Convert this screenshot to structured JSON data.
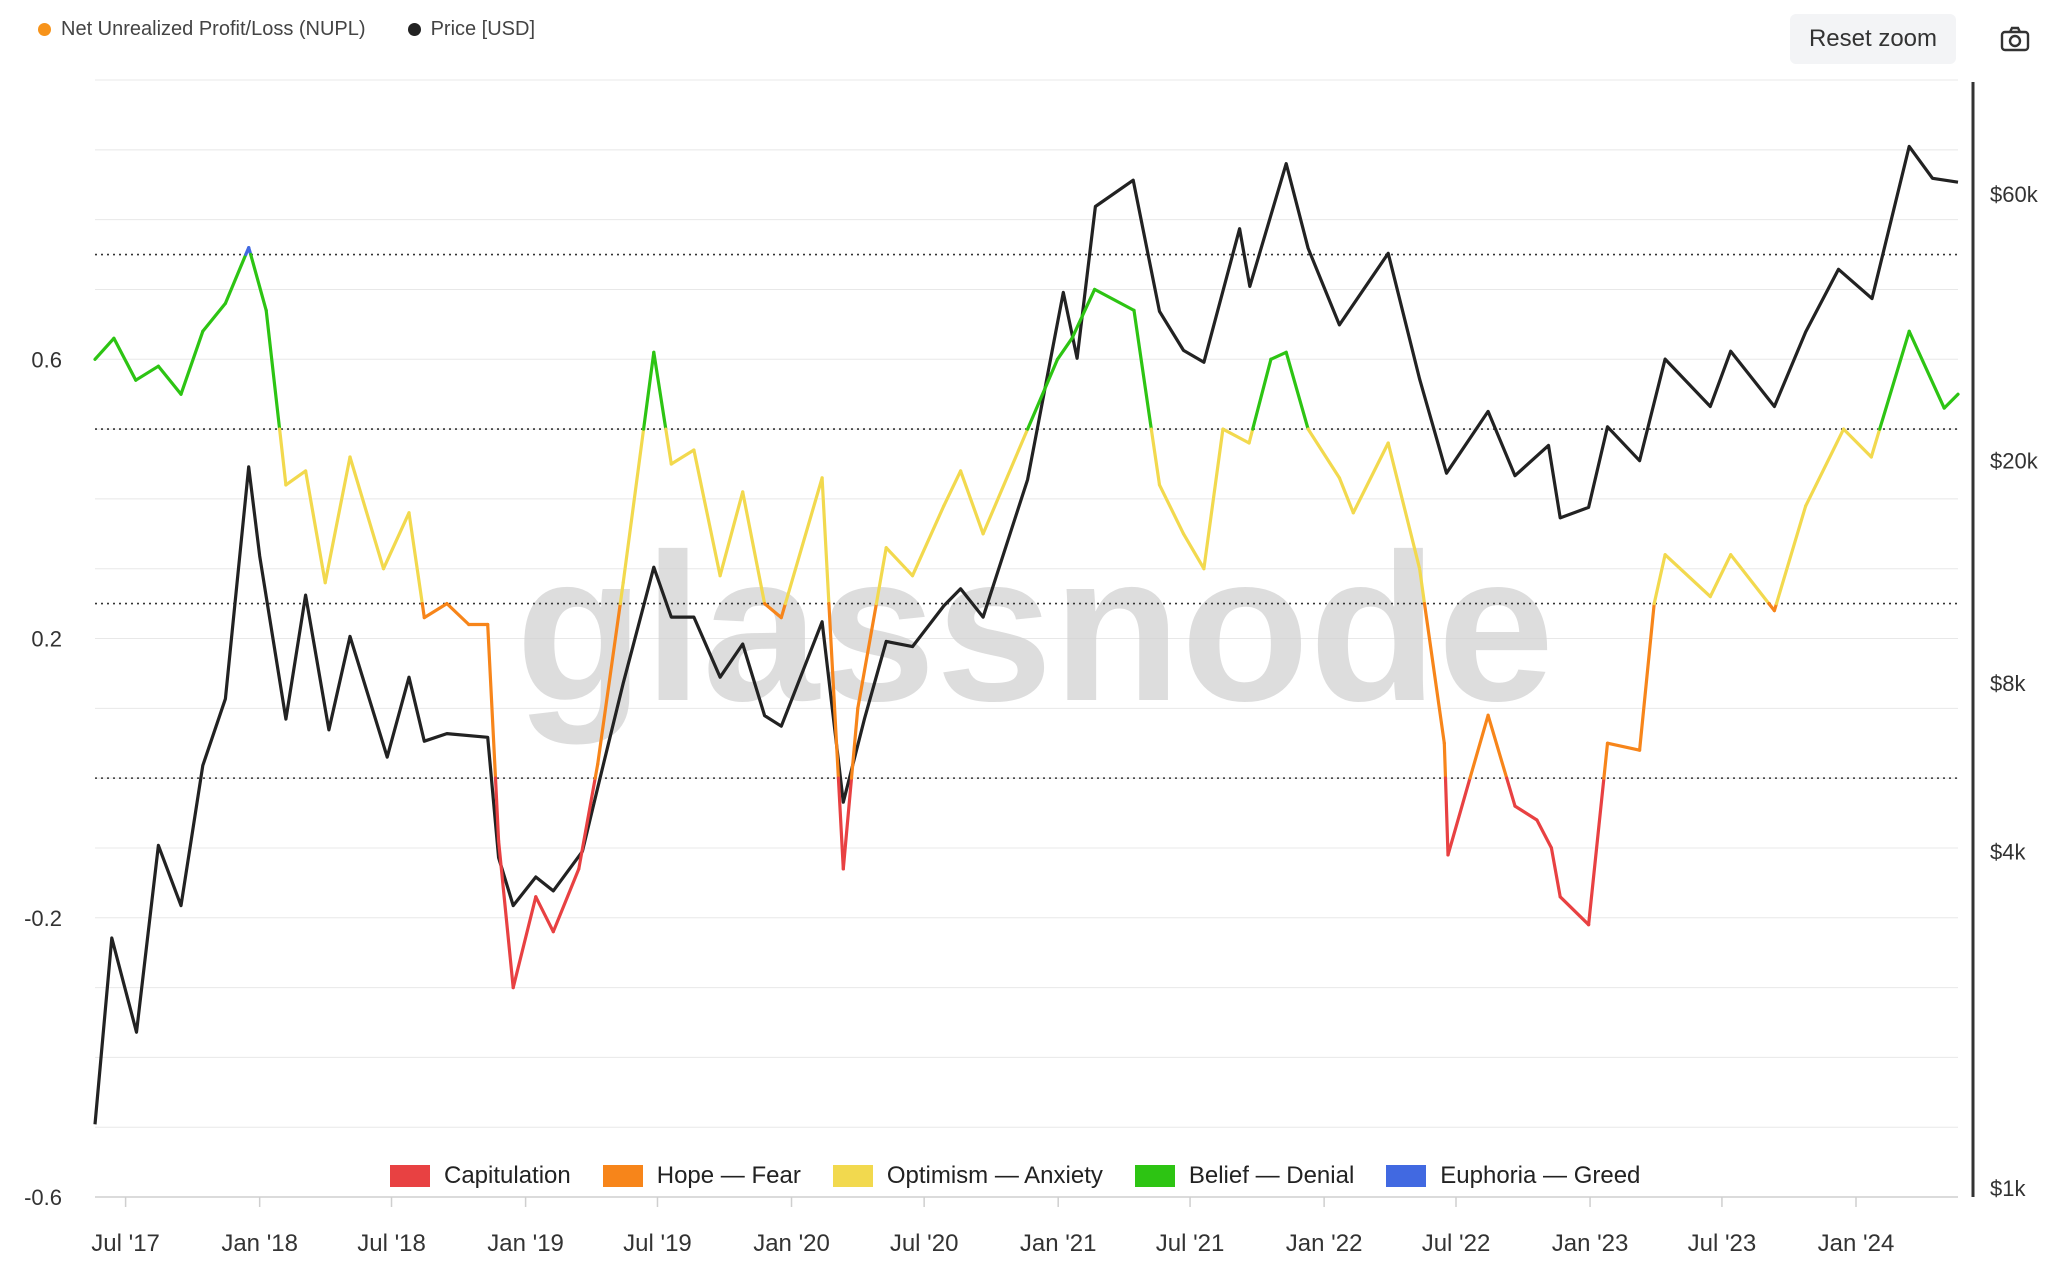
{
  "legend": {
    "nupl_label": "Net Unrealized Profit/Loss (NUPL)",
    "nupl_color": "#f7931a",
    "price_label": "Price [USD]",
    "price_color": "#222222"
  },
  "toolbar": {
    "reset_zoom_label": "Reset zoom",
    "camera_icon": "camera-icon"
  },
  "watermark": "glassnode",
  "chart_data": {
    "type": "line",
    "x_tick_labels": [
      "Jul '17",
      "Jan '18",
      "Jul '18",
      "Jan '19",
      "Jul '19",
      "Jan '20",
      "Jul '20",
      "Jan '21",
      "Jul '21",
      "Jan '22",
      "Jul '22",
      "Jan '23",
      "Jul '23",
      "Jan '24"
    ],
    "x_tick_dates": [
      "2017-07-01",
      "2018-01-01",
      "2018-07-01",
      "2019-01-01",
      "2019-07-01",
      "2020-01-01",
      "2020-07-01",
      "2021-01-01",
      "2021-07-01",
      "2022-01-01",
      "2022-07-01",
      "2023-01-01",
      "2023-07-01",
      "2024-01-01"
    ],
    "x_range": [
      "2017-05-20",
      "2024-05-20"
    ],
    "y_left": {
      "ticks": [
        0.6,
        0.2,
        -0.2,
        -0.6
      ],
      "tick_labels": [
        "0.6",
        "0.2",
        "-0.2",
        "-0.6"
      ],
      "range": [
        -0.6,
        1.0
      ]
    },
    "y_right": {
      "scale": "log",
      "ticks": [
        1000,
        4000,
        8000,
        20000,
        60000
      ],
      "tick_labels": [
        "$1k",
        "$4k",
        "$8k",
        "$20k",
        "$60k"
      ]
    },
    "zones": [
      {
        "name": "Capitulation",
        "color": "#e84142",
        "max": 0
      },
      {
        "name": "Hope — Fear",
        "color": "#f7851a",
        "min": 0,
        "max": 0.25
      },
      {
        "name": "Optimism — Anxiety",
        "color": "#f2d94e",
        "min": 0.25,
        "max": 0.5
      },
      {
        "name": "Belief — Denial",
        "color": "#2dc413",
        "min": 0.5,
        "max": 0.75
      },
      {
        "name": "Euphoria — Greed",
        "color": "#4169e1",
        "min": 0.75
      }
    ],
    "zone_thresholds": [
      0.75,
      0.5,
      0.25,
      0
    ],
    "series": [
      {
        "name": "Net Unrealized Profit/Loss (NUPL)",
        "axis": "left",
        "points": [
          [
            "2017-05-20",
            0.6
          ],
          [
            "2017-06-15",
            0.63
          ],
          [
            "2017-07-15",
            0.57
          ],
          [
            "2017-08-15",
            0.59
          ],
          [
            "2017-09-15",
            0.55
          ],
          [
            "2017-10-15",
            0.64
          ],
          [
            "2017-11-15",
            0.68
          ],
          [
            "2017-12-17",
            0.76
          ],
          [
            "2018-01-10",
            0.67
          ],
          [
            "2018-02-06",
            0.42
          ],
          [
            "2018-03-05",
            0.44
          ],
          [
            "2018-04-01",
            0.28
          ],
          [
            "2018-05-05",
            0.46
          ],
          [
            "2018-06-20",
            0.3
          ],
          [
            "2018-07-25",
            0.38
          ],
          [
            "2018-08-15",
            0.23
          ],
          [
            "2018-09-15",
            0.25
          ],
          [
            "2018-10-15",
            0.22
          ],
          [
            "2018-11-10",
            0.22
          ],
          [
            "2018-11-25",
            -0.09
          ],
          [
            "2018-12-15",
            -0.3
          ],
          [
            "2019-01-15",
            -0.17
          ],
          [
            "2019-02-08",
            -0.22
          ],
          [
            "2019-03-15",
            -0.13
          ],
          [
            "2019-04-10",
            0.02
          ],
          [
            "2019-05-15",
            0.28
          ],
          [
            "2019-06-26",
            0.61
          ],
          [
            "2019-07-20",
            0.45
          ],
          [
            "2019-08-20",
            0.47
          ],
          [
            "2019-09-25",
            0.29
          ],
          [
            "2019-10-26",
            0.41
          ],
          [
            "2019-11-25",
            0.25
          ],
          [
            "2019-12-18",
            0.23
          ],
          [
            "2020-02-12",
            0.43
          ],
          [
            "2020-03-12",
            -0.13
          ],
          [
            "2020-04-01",
            0.1
          ],
          [
            "2020-05-10",
            0.33
          ],
          [
            "2020-06-15",
            0.29
          ],
          [
            "2020-07-28",
            0.39
          ],
          [
            "2020-08-20",
            0.44
          ],
          [
            "2020-09-20",
            0.35
          ],
          [
            "2020-11-20",
            0.5
          ],
          [
            "2020-12-31",
            0.6
          ],
          [
            "2021-01-20",
            0.63
          ],
          [
            "2021-02-20",
            0.7
          ],
          [
            "2021-04-15",
            0.67
          ],
          [
            "2021-05-20",
            0.42
          ],
          [
            "2021-06-22",
            0.35
          ],
          [
            "2021-07-20",
            0.3
          ],
          [
            "2021-08-15",
            0.5
          ],
          [
            "2021-09-20",
            0.48
          ],
          [
            "2021-10-20",
            0.6
          ],
          [
            "2021-11-10",
            0.61
          ],
          [
            "2021-12-10",
            0.5
          ],
          [
            "2022-01-22",
            0.43
          ],
          [
            "2022-02-10",
            0.38
          ],
          [
            "2022-03-30",
            0.48
          ],
          [
            "2022-05-12",
            0.3
          ],
          [
            "2022-06-15",
            0.05
          ],
          [
            "2022-06-20",
            -0.11
          ],
          [
            "2022-08-14",
            0.09
          ],
          [
            "2022-09-20",
            -0.04
          ],
          [
            "2022-10-20",
            -0.06
          ],
          [
            "2022-11-09",
            -0.1
          ],
          [
            "2022-11-21",
            -0.17
          ],
          [
            "2022-12-30",
            -0.21
          ],
          [
            "2023-01-25",
            0.05
          ],
          [
            "2023-03-10",
            0.04
          ],
          [
            "2023-03-30",
            0.25
          ],
          [
            "2023-04-14",
            0.32
          ],
          [
            "2023-06-15",
            0.26
          ],
          [
            "2023-07-13",
            0.32
          ],
          [
            "2023-09-11",
            0.24
          ],
          [
            "2023-10-24",
            0.39
          ],
          [
            "2023-12-15",
            0.5
          ],
          [
            "2024-01-22",
            0.46
          ],
          [
            "2024-03-14",
            0.64
          ],
          [
            "2024-05-01",
            0.53
          ],
          [
            "2024-05-20",
            0.55
          ]
        ]
      },
      {
        "name": "Price [USD]",
        "axis": "right",
        "color": "#222222",
        "points": [
          [
            "2017-05-20",
            1300
          ],
          [
            "2017-06-12",
            2800
          ],
          [
            "2017-07-16",
            1900
          ],
          [
            "2017-08-15",
            4100
          ],
          [
            "2017-09-15",
            3200
          ],
          [
            "2017-10-15",
            5700
          ],
          [
            "2017-11-15",
            7500
          ],
          [
            "2017-12-17",
            19500
          ],
          [
            "2018-01-01",
            13500
          ],
          [
            "2018-02-06",
            6900
          ],
          [
            "2018-03-05",
            11500
          ],
          [
            "2018-04-06",
            6600
          ],
          [
            "2018-05-05",
            9700
          ],
          [
            "2018-06-25",
            5900
          ],
          [
            "2018-07-25",
            8200
          ],
          [
            "2018-08-15",
            6300
          ],
          [
            "2018-09-15",
            6500
          ],
          [
            "2018-11-10",
            6400
          ],
          [
            "2018-11-25",
            3900
          ],
          [
            "2018-12-15",
            3200
          ],
          [
            "2019-01-15",
            3600
          ],
          [
            "2019-02-08",
            3400
          ],
          [
            "2019-03-20",
            4000
          ],
          [
            "2019-04-10",
            5200
          ],
          [
            "2019-05-15",
            8000
          ],
          [
            "2019-06-26",
            12900
          ],
          [
            "2019-07-20",
            10500
          ],
          [
            "2019-08-20",
            10500
          ],
          [
            "2019-09-25",
            8200
          ],
          [
            "2019-10-26",
            9400
          ],
          [
            "2019-11-25",
            7000
          ],
          [
            "2019-12-18",
            6700
          ],
          [
            "2020-02-12",
            10300
          ],
          [
            "2020-03-12",
            4900
          ],
          [
            "2020-04-10",
            6900
          ],
          [
            "2020-05-10",
            9500
          ],
          [
            "2020-06-15",
            9300
          ],
          [
            "2020-07-28",
            11000
          ],
          [
            "2020-08-20",
            11800
          ],
          [
            "2020-09-20",
            10500
          ],
          [
            "2020-11-20",
            18500
          ],
          [
            "2021-01-08",
            40000
          ],
          [
            "2021-01-27",
            30500
          ],
          [
            "2021-02-21",
            57000
          ],
          [
            "2021-04-14",
            63500
          ],
          [
            "2021-05-20",
            37000
          ],
          [
            "2021-06-22",
            31500
          ],
          [
            "2021-07-20",
            30000
          ],
          [
            "2021-09-07",
            52000
          ],
          [
            "2021-09-21",
            41000
          ],
          [
            "2021-11-10",
            68000
          ],
          [
            "2021-12-10",
            48000
          ],
          [
            "2022-01-22",
            35000
          ],
          [
            "2022-03-30",
            47000
          ],
          [
            "2022-05-12",
            28000
          ],
          [
            "2022-06-18",
            19000
          ],
          [
            "2022-08-14",
            24500
          ],
          [
            "2022-09-20",
            18800
          ],
          [
            "2022-11-05",
            21300
          ],
          [
            "2022-11-21",
            15800
          ],
          [
            "2022-12-30",
            16500
          ],
          [
            "2023-01-25",
            23000
          ],
          [
            "2023-03-10",
            20000
          ],
          [
            "2023-04-14",
            30400
          ],
          [
            "2023-06-15",
            25000
          ],
          [
            "2023-07-13",
            31400
          ],
          [
            "2023-09-11",
            25000
          ],
          [
            "2023-10-24",
            34000
          ],
          [
            "2023-12-08",
            44000
          ],
          [
            "2024-01-23",
            39000
          ],
          [
            "2024-03-14",
            73000
          ],
          [
            "2024-04-15",
            64000
          ],
          [
            "2024-05-20",
            63000
          ]
        ]
      }
    ],
    "grid": true,
    "legend_position": "top-left (series) / bottom (zones)"
  },
  "legend_bottom": [
    {
      "label": "Capitulation",
      "color": "#e84142"
    },
    {
      "label": "Hope — Fear",
      "color": "#f7851a"
    },
    {
      "label": "Optimism — Anxiety",
      "color": "#f2d94e"
    },
    {
      "label": "Belief — Denial",
      "color": "#2dc413"
    },
    {
      "label": "Euphoria — Greed",
      "color": "#4169e1"
    }
  ]
}
